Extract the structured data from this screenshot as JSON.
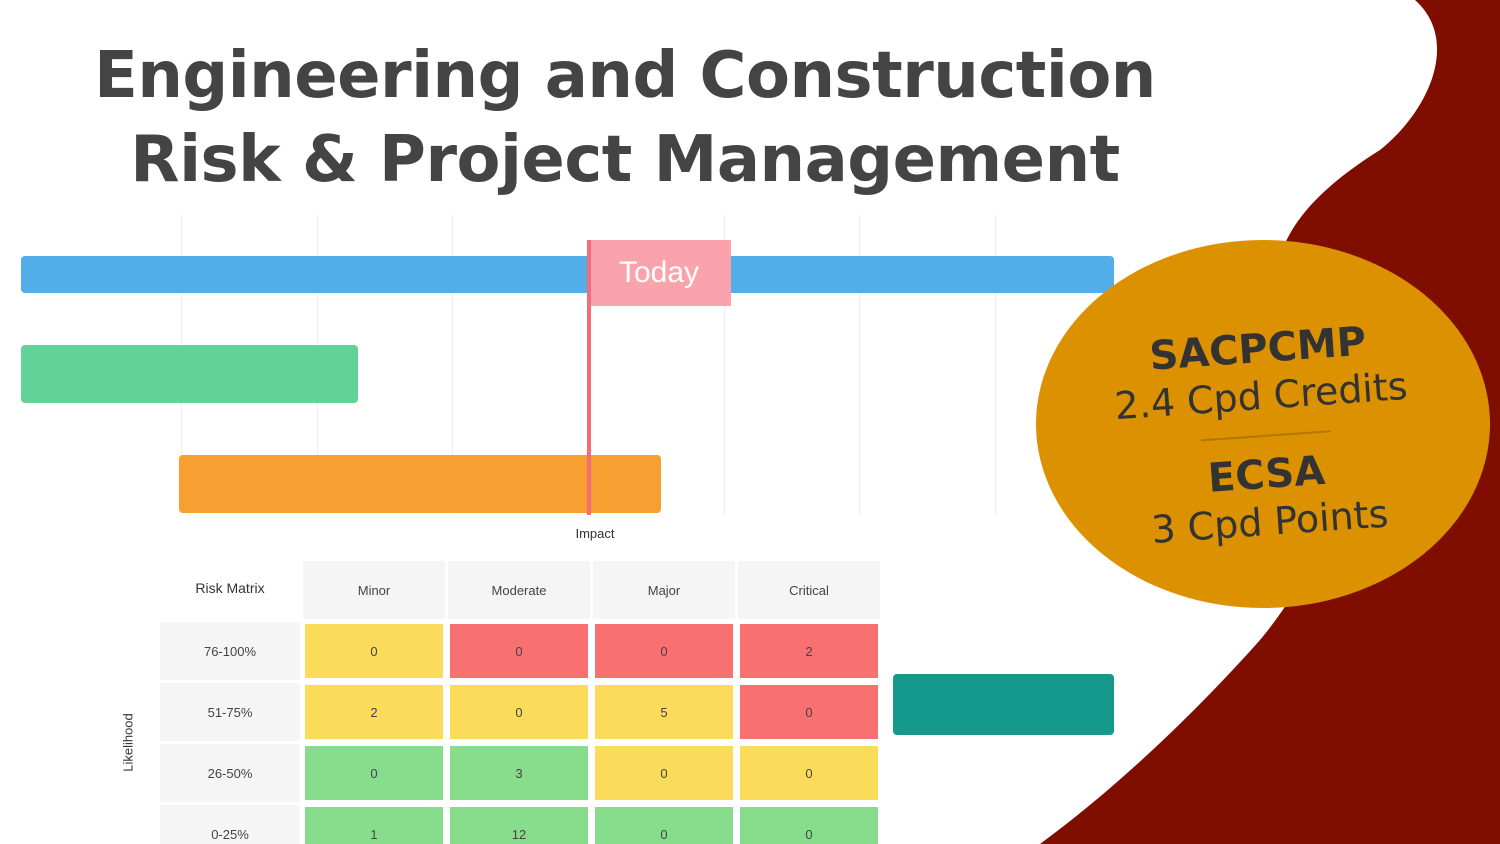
{
  "title": {
    "line1": "Engineering and Construction",
    "line2": "Risk & Project Management"
  },
  "gantt": {
    "today_label": "Today"
  },
  "risk_matrix": {
    "corner_label": "Risk Matrix",
    "x_axis_label": "Impact",
    "y_axis_label": "Likelihood",
    "columns": [
      "Minor",
      "Moderate",
      "Major",
      "Critical"
    ],
    "rows": [
      {
        "label": "76-100%",
        "values": [
          "0",
          "0",
          "0",
          "2"
        ],
        "colors": [
          "#fbdc5a",
          "#f87070",
          "#f87070",
          "#f87070"
        ]
      },
      {
        "label": "51-75%",
        "values": [
          "2",
          "0",
          "5",
          "0"
        ],
        "colors": [
          "#fbdc5a",
          "#fbdc5a",
          "#fbdc5a",
          "#f87070"
        ]
      },
      {
        "label": "26-50%",
        "values": [
          "0",
          "3",
          "0",
          "0"
        ],
        "colors": [
          "#88dd8c",
          "#88dd8c",
          "#fbdc5a",
          "#fbdc5a"
        ]
      },
      {
        "label": "0-25%",
        "values": [
          "1",
          "12",
          "0",
          "0"
        ],
        "colors": [
          "#88dd8c",
          "#88dd8c",
          "#88dd8c",
          "#88dd8c"
        ]
      }
    ]
  },
  "badge": {
    "org1": "SACPCMP",
    "credits1": "2.4 Cpd Credits",
    "org2": "ECSA",
    "credits2": "3 Cpd Points"
  },
  "colors": {
    "maroon": "#7f0e00",
    "badge": "#dc9100",
    "title_text": "#444444"
  }
}
